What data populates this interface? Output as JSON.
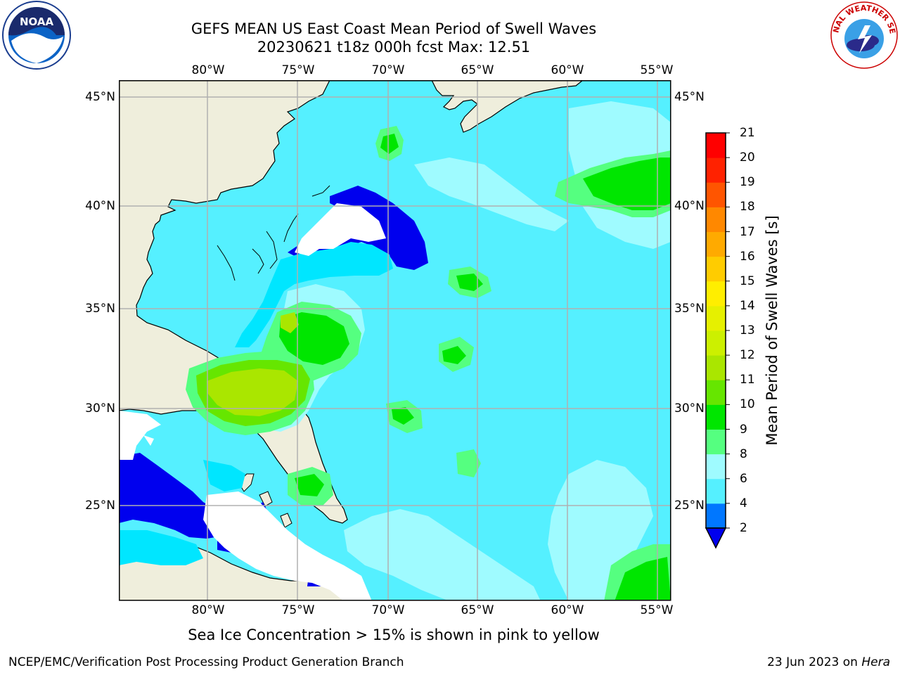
{
  "header": {
    "title_line1": "GEFS MEAN US East Coast Mean Period of Swell Waves",
    "title_line2": "20230621 t18z 000h fcst   Max: 12.51"
  },
  "map": {
    "longitude_labels": [
      "80°W",
      "75°W",
      "70°W",
      "65°W",
      "60°W",
      "55°W"
    ],
    "latitude_labels": [
      "45°N",
      "40°N",
      "35°N",
      "30°N",
      "25°N"
    ],
    "extent": {
      "lon_min": -85,
      "lon_max": -54.5,
      "lat_min": 20.5,
      "lat_max": 45.8
    },
    "land_color": "#efeedc",
    "gridline_color": "#b0b0b0"
  },
  "colorbar": {
    "title": "Mean Period of Swell Waves [s]",
    "tick_labels": [
      "2",
      "4",
      "6",
      "8",
      "9",
      "10",
      "11",
      "12",
      "13",
      "14",
      "15",
      "16",
      "17",
      "18",
      "19",
      "20",
      "21"
    ],
    "colors": [
      "#0000ee",
      "#0077ff",
      "#00e6ff",
      "#55f0ff",
      "#9ffbff",
      "#55ff80",
      "#00e600",
      "#66e600",
      "#aae600",
      "#ccf000",
      "#e6f000",
      "#ffee00",
      "#ffcc00",
      "#ffaa00",
      "#ff8800",
      "#ff5500",
      "#ff2200",
      "#ff0000"
    ],
    "extend": "min"
  },
  "footer": {
    "note": "Sea Ice Concentration > 15% is shown in pink to yellow",
    "left": "NCEP/EMC/Verification Post Processing Product Generation Branch",
    "right_prefix": "23 Jun 2023 on ",
    "right_host": "Hera"
  },
  "logos": {
    "noaa_text": "NOAA",
    "nws_text": "NATIONAL WEATHER SERVICE"
  }
}
